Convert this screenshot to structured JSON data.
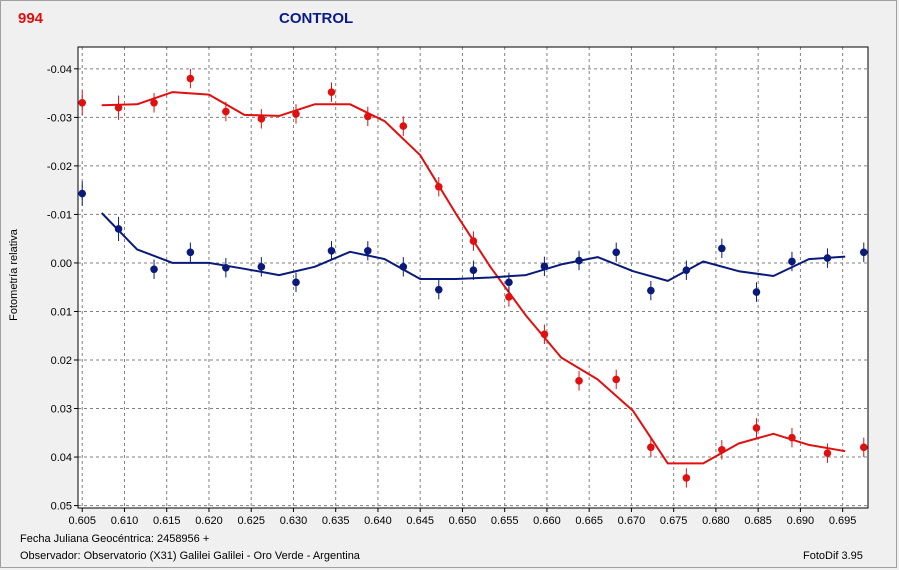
{
  "header": {
    "object_id": "994",
    "title": "CONTROL"
  },
  "footer": {
    "line1": "Fecha Juliana Geocéntrica: 2458956 +",
    "line2": "Observador: Observatorio (X31) Galilei Galilei - Oro Verde - Argentina",
    "software": "FotoDif 3.95"
  },
  "colors": {
    "red_series": "#e01010",
    "blue_series": "#0a1a7a",
    "background": "#ffffff",
    "grid": "#808080"
  },
  "chart_data": {
    "type": "scatter",
    "ylabel": "Fotometría relativa",
    "xlim": [
      0.6045,
      0.698
    ],
    "ylim": [
      -0.0445,
      0.0505
    ],
    "y_inverted": true,
    "grid": true,
    "x_ticks": [
      "0.605",
      "0.610",
      "0.615",
      "0.620",
      "0.625",
      "0.630",
      "0.635",
      "0.640",
      "0.645",
      "0.650",
      "0.655",
      "0.660",
      "0.665",
      "0.670",
      "0.675",
      "0.680",
      "0.685",
      "0.690",
      "0.695"
    ],
    "y_ticks": [
      "-0.04",
      "-0.03",
      "-0.02",
      "-0.01",
      "0.00",
      "0.01",
      "0.02",
      "0.03",
      "0.04",
      "0.05"
    ],
    "series": [
      {
        "color": "#e01010",
        "points": [
          {
            "x": 0.605,
            "y": -0.033,
            "err": 0.0025
          },
          {
            "x": 0.6093,
            "y": -0.032,
            "err": 0.0025
          },
          {
            "x": 0.6135,
            "y": -0.033,
            "err": 0.002
          },
          {
            "x": 0.6178,
            "y": -0.038,
            "err": 0.002
          },
          {
            "x": 0.622,
            "y": -0.0312,
            "err": 0.002
          },
          {
            "x": 0.6262,
            "y": -0.0297,
            "err": 0.002
          },
          {
            "x": 0.6303,
            "y": -0.0307,
            "err": 0.002
          },
          {
            "x": 0.6345,
            "y": -0.0352,
            "err": 0.002
          },
          {
            "x": 0.6388,
            "y": -0.0302,
            "err": 0.002
          },
          {
            "x": 0.643,
            "y": -0.0282,
            "err": 0.002
          },
          {
            "x": 0.6472,
            "y": -0.0157,
            "err": 0.002
          },
          {
            "x": 0.6513,
            "y": -0.0045,
            "err": 0.002
          },
          {
            "x": 0.6555,
            "y": 0.007,
            "err": 0.002
          },
          {
            "x": 0.6597,
            "y": 0.0147,
            "err": 0.002
          },
          {
            "x": 0.6638,
            "y": 0.0243,
            "err": 0.002
          },
          {
            "x": 0.6682,
            "y": 0.024,
            "err": 0.002
          },
          {
            "x": 0.6723,
            "y": 0.038,
            "err": 0.002
          },
          {
            "x": 0.6765,
            "y": 0.0443,
            "err": 0.002
          },
          {
            "x": 0.6807,
            "y": 0.0385,
            "err": 0.002
          },
          {
            "x": 0.6848,
            "y": 0.034,
            "err": 0.002
          },
          {
            "x": 0.689,
            "y": 0.036,
            "err": 0.002
          },
          {
            "x": 0.6932,
            "y": 0.0392,
            "err": 0.002
          },
          {
            "x": 0.6975,
            "y": 0.038,
            "err": 0.002
          }
        ],
        "curve": [
          [
            0.6073,
            -0.0325
          ],
          [
            0.6115,
            -0.0327
          ],
          [
            0.6157,
            -0.0352
          ],
          [
            0.62,
            -0.0347
          ],
          [
            0.6242,
            -0.0305
          ],
          [
            0.6283,
            -0.0303
          ],
          [
            0.6325,
            -0.0327
          ],
          [
            0.6367,
            -0.0327
          ],
          [
            0.6408,
            -0.0292
          ],
          [
            0.645,
            -0.0222
          ],
          [
            0.6492,
            -0.0102
          ],
          [
            0.6533,
            0.0008
          ],
          [
            0.6575,
            0.0108
          ],
          [
            0.6617,
            0.0195
          ],
          [
            0.666,
            0.024
          ],
          [
            0.6702,
            0.0305
          ],
          [
            0.6743,
            0.0413
          ],
          [
            0.6785,
            0.0413
          ],
          [
            0.6827,
            0.0372
          ],
          [
            0.6868,
            0.0352
          ],
          [
            0.691,
            0.0375
          ],
          [
            0.6953,
            0.0388
          ]
        ]
      },
      {
        "color": "#0a1a7a",
        "points": [
          {
            "x": 0.605,
            "y": -0.0143,
            "err": 0.0025
          },
          {
            "x": 0.6093,
            "y": -0.007,
            "err": 0.0025
          },
          {
            "x": 0.6135,
            "y": 0.0013,
            "err": 0.002
          },
          {
            "x": 0.6178,
            "y": -0.0022,
            "err": 0.002
          },
          {
            "x": 0.622,
            "y": 0.001,
            "err": 0.002
          },
          {
            "x": 0.6262,
            "y": 0.0008,
            "err": 0.002
          },
          {
            "x": 0.6303,
            "y": 0.004,
            "err": 0.002
          },
          {
            "x": 0.6345,
            "y": -0.0025,
            "err": 0.002
          },
          {
            "x": 0.6388,
            "y": -0.0025,
            "err": 0.002
          },
          {
            "x": 0.643,
            "y": 0.0008,
            "err": 0.002
          },
          {
            "x": 0.6472,
            "y": 0.0055,
            "err": 0.002
          },
          {
            "x": 0.6513,
            "y": 0.0015,
            "err": 0.002
          },
          {
            "x": 0.6555,
            "y": 0.004,
            "err": 0.002
          },
          {
            "x": 0.6597,
            "y": 0.0007,
            "err": 0.002
          },
          {
            "x": 0.6638,
            "y": -0.0005,
            "err": 0.002
          },
          {
            "x": 0.6682,
            "y": -0.0022,
            "err": 0.002
          },
          {
            "x": 0.6723,
            "y": 0.0057,
            "err": 0.002
          },
          {
            "x": 0.6765,
            "y": 0.0015,
            "err": 0.002
          },
          {
            "x": 0.6807,
            "y": -0.003,
            "err": 0.002
          },
          {
            "x": 0.6848,
            "y": 0.006,
            "err": 0.002
          },
          {
            "x": 0.689,
            "y": -0.0003,
            "err": 0.002
          },
          {
            "x": 0.6932,
            "y": -0.001,
            "err": 0.002
          },
          {
            "x": 0.6975,
            "y": -0.0022,
            "err": 0.002
          }
        ],
        "curve": [
          [
            0.6073,
            -0.0103
          ],
          [
            0.6115,
            -0.0028
          ],
          [
            0.6157,
            0.0
          ],
          [
            0.62,
            0.0
          ],
          [
            0.6242,
            0.0012
          ],
          [
            0.6283,
            0.0025
          ],
          [
            0.6325,
            0.0008
          ],
          [
            0.6367,
            -0.0023
          ],
          [
            0.6408,
            -0.0008
          ],
          [
            0.645,
            0.0033
          ],
          [
            0.6492,
            0.0033
          ],
          [
            0.6533,
            0.003
          ],
          [
            0.6575,
            0.0025
          ],
          [
            0.6617,
            0.0003
          ],
          [
            0.666,
            -0.0012
          ],
          [
            0.6702,
            0.0017
          ],
          [
            0.6743,
            0.0037
          ],
          [
            0.6785,
            -0.0003
          ],
          [
            0.6827,
            0.0017
          ],
          [
            0.6868,
            0.0027
          ],
          [
            0.691,
            -0.0008
          ],
          [
            0.6953,
            -0.0013
          ]
        ]
      }
    ]
  }
}
